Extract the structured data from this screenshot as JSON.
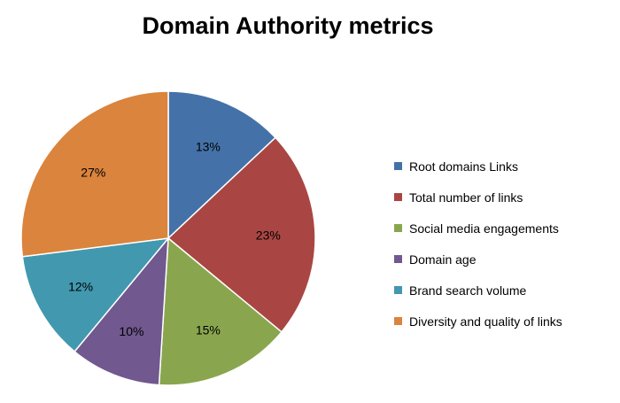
{
  "chart_data": {
    "type": "pie",
    "title": "Domain Authority metrics",
    "categories": [
      "Root domains Links",
      "Total number of links",
      "Social media engagements",
      "Domain age",
      "Brand search volume",
      "Diversity and quality of links"
    ],
    "values": [
      13,
      23,
      15,
      10,
      12,
      27
    ],
    "data_labels": [
      "13%",
      "23%",
      "15%",
      "10%",
      "12%",
      "27%"
    ],
    "colors": [
      "#4472A8",
      "#A94643",
      "#89A64E",
      "#71588F",
      "#4298AF",
      "#DB843D"
    ],
    "start_angle": "12 o'clock",
    "direction": "clockwise",
    "legend_position": "right"
  }
}
